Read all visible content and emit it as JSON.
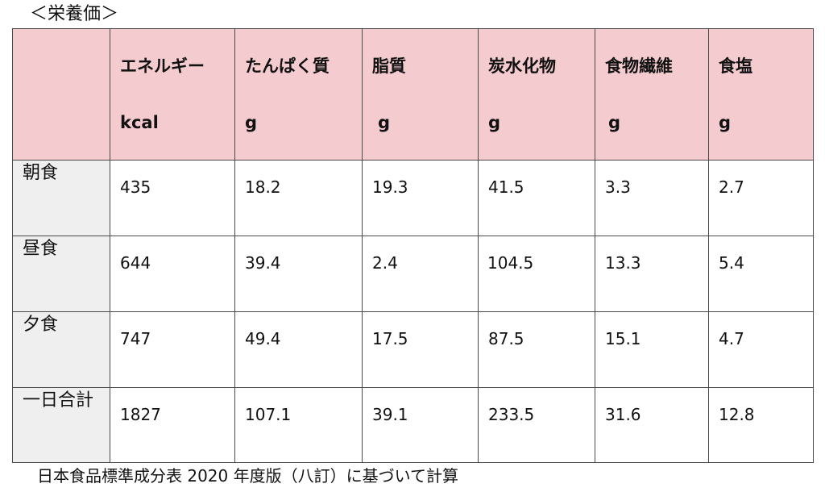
{
  "caption": "＜栄養価＞",
  "columns": [
    {
      "name": "",
      "unit": ""
    },
    {
      "name": "エネルギー",
      "unit": "kcal"
    },
    {
      "name": "たんぱく質",
      "unit": "g"
    },
    {
      "name": "脂質",
      "unit": "g"
    },
    {
      "name": "炭水化物",
      "unit": "g"
    },
    {
      "name": "食物繊維",
      "unit": "g"
    },
    {
      "name": "食塩",
      "unit": "g"
    }
  ],
  "rows": [
    {
      "label": "朝食",
      "values": [
        "435",
        "18.2",
        "19.3",
        "41.5",
        "3.3",
        "2.7"
      ]
    },
    {
      "label": "昼食",
      "values": [
        "644",
        "39.4",
        "2.4",
        "104.5",
        "13.3",
        "5.4"
      ]
    },
    {
      "label": "夕食",
      "values": [
        "747",
        "49.4",
        "17.5",
        "87.5",
        "15.1",
        "4.7"
      ]
    },
    {
      "label": "一日合計",
      "values": [
        "1827",
        "107.1",
        "39.1",
        "233.5",
        "31.6",
        "12.8"
      ]
    }
  ],
  "footnote": "日本食品標準成分表 2020 年度版（八訂）に基づいて計算",
  "colors": {
    "header_bg": "#f4cbcf",
    "label_bg": "#efefef",
    "border": "#4a4a4a"
  }
}
